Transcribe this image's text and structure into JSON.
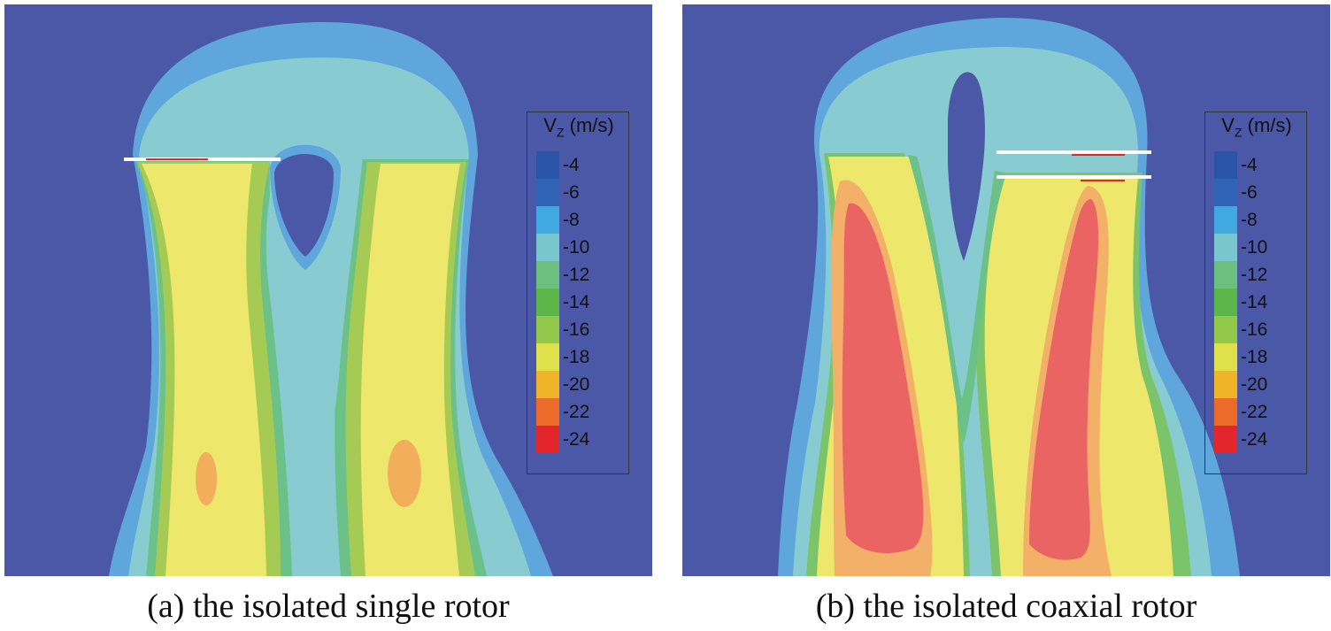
{
  "colors": {
    "background_field": "#4b57a7",
    "c_minus4": "#2a54a8",
    "c_minus6": "#2f63b6",
    "c_minus8": "#5fb0e2",
    "c_minus10": "#88cbd0",
    "c_minus12": "#6cc189",
    "c_minus14": "#5cb84a",
    "c_minus16": "#93c54a",
    "c_minus18": "#ede86c",
    "c_minus20": "#f2b43e",
    "c_minus22": "#f07a3e",
    "c_minus24": "#e23a3a",
    "core_red": "#ea6463",
    "rotor_blade": "#ffffff"
  },
  "legend": {
    "title_main": "V",
    "title_sub": "Z",
    "title_unit": " (m/s)",
    "levels": [
      {
        "label": "-4",
        "color": "#2a54a8"
      },
      {
        "label": "-6",
        "color": "#2f63b6"
      },
      {
        "label": "-8",
        "color": "#3fa9e0"
      },
      {
        "label": "-10",
        "color": "#79c7cc"
      },
      {
        "label": "-12",
        "color": "#6cbf7e"
      },
      {
        "label": "-14",
        "color": "#5db64a"
      },
      {
        "label": "-16",
        "color": "#92c84b"
      },
      {
        "label": "-18",
        "color": "#dfe04a"
      },
      {
        "label": "-20",
        "color": "#f0b42a"
      },
      {
        "label": "-22",
        "color": "#ec6a2a"
      },
      {
        "label": "-24",
        "color": "#e3262c"
      }
    ]
  },
  "panels": [
    {
      "id": "a",
      "caption": "(a) the isolated single rotor",
      "rotor_count": 1
    },
    {
      "id": "b",
      "caption": "(b) the isolated coaxial rotor",
      "rotor_count": 2
    }
  ]
}
